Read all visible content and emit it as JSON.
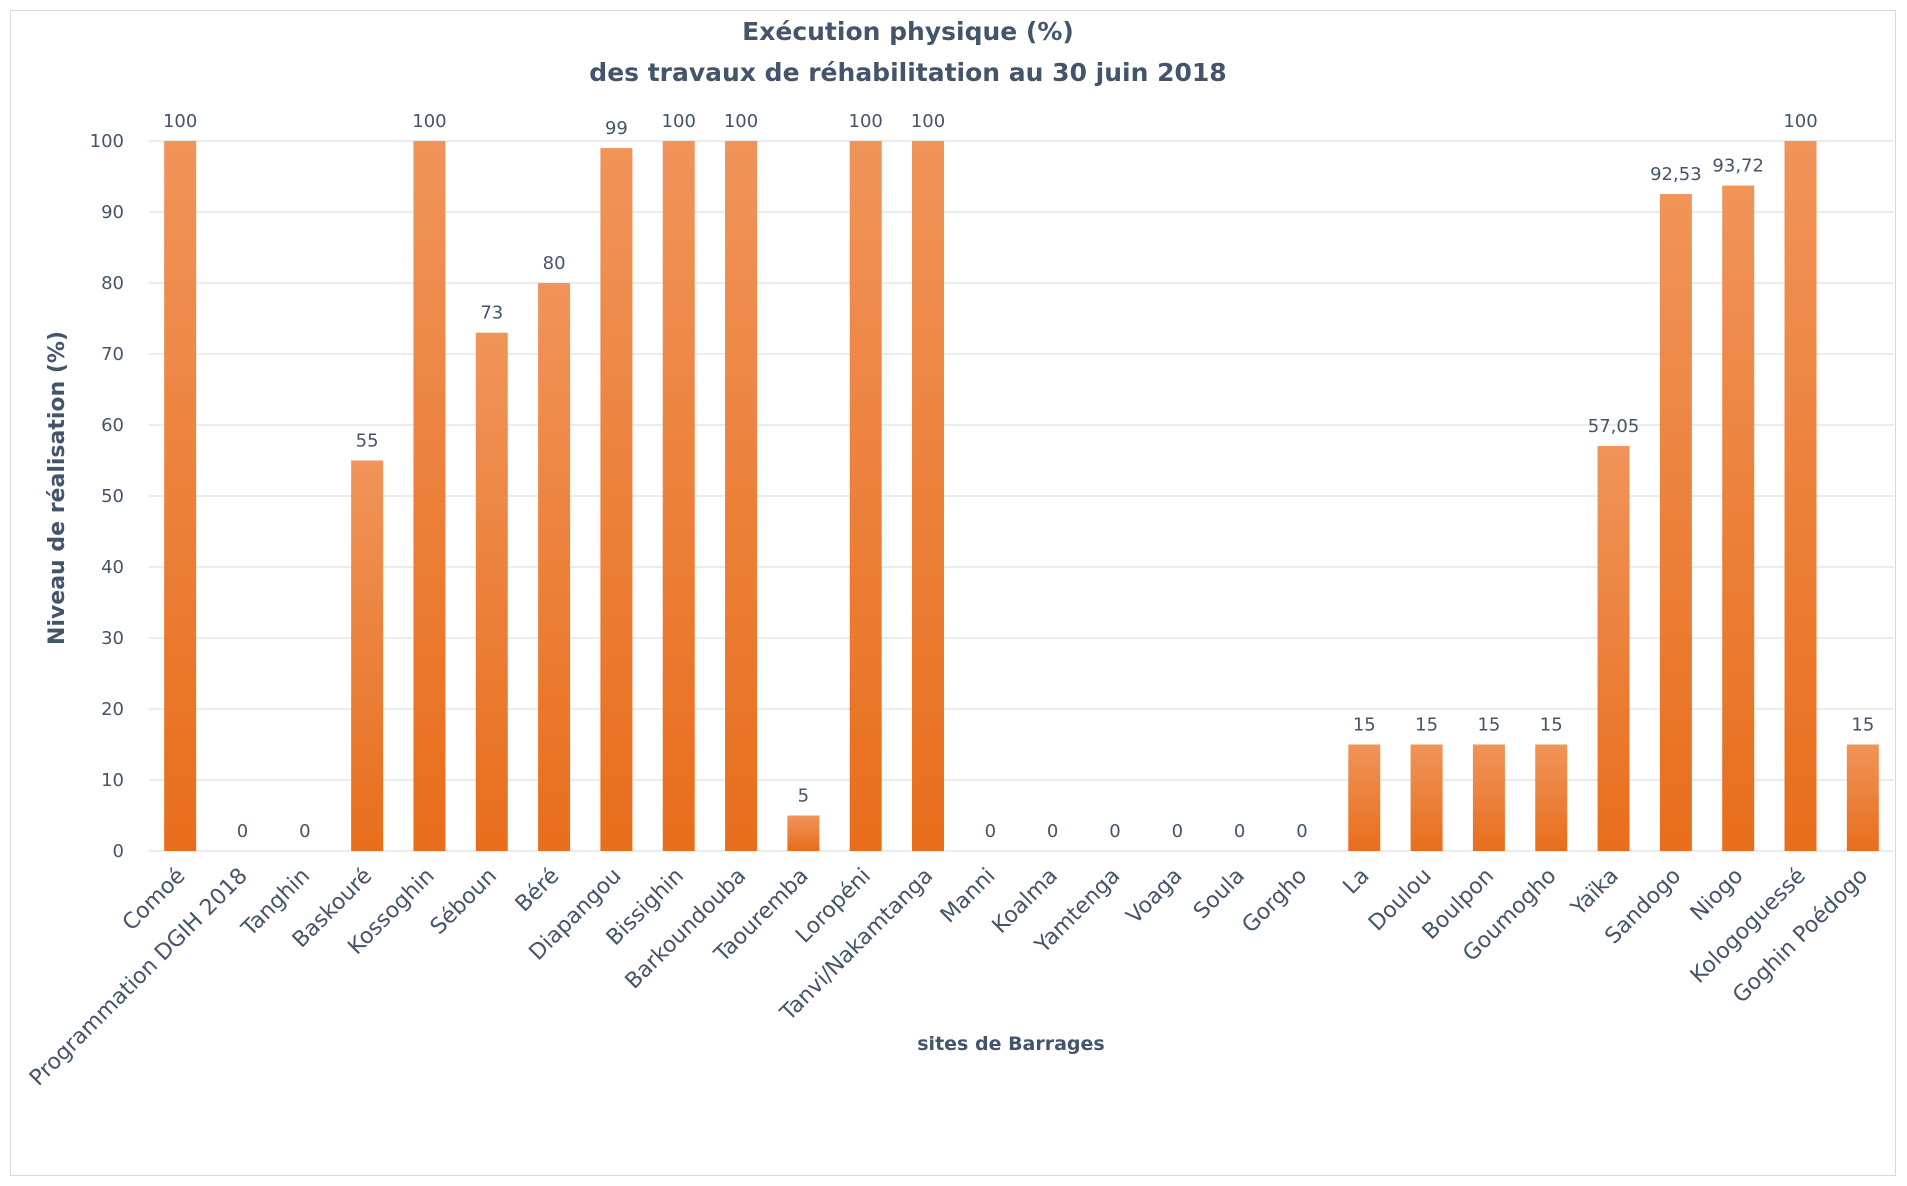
{
  "chart_data": {
    "type": "bar",
    "title_line1": "Exécution physique (%)",
    "title_line2": "des travaux de réhabilitation au 30 juin 2018",
    "xlabel": "sites de Barrages",
    "ylabel": "Niveau de réalisation (%)",
    "ylim": [
      0,
      100
    ],
    "yticks": [
      0,
      10,
      20,
      30,
      40,
      50,
      60,
      70,
      80,
      90,
      100
    ],
    "grid": true,
    "bar_color_top": "#f0945a",
    "bar_color_bottom": "#e86e1c",
    "categories": [
      "Comoé",
      "Programmation DGIH 2018",
      "Tanghin",
      "Baskouré",
      "Kossoghin",
      "Séboun",
      "Béré",
      "Diapangou",
      "Bissighin",
      "Barkoundouba",
      "Taouremba",
      "Loropéni",
      "Tanvi/Nakamtanga",
      "Manni",
      "Koalma",
      "Yamtenga",
      "Voaga",
      "Soula",
      "Gorgho",
      "La",
      "Doulou",
      "Boulpon",
      "Goumogho",
      "Yaïka",
      "Sandogo",
      "Niogo",
      "Kologoguessé",
      "Goghin Poédogo"
    ],
    "values": [
      100,
      0,
      0,
      55,
      100,
      73,
      80,
      99,
      100,
      100,
      5,
      100,
      100,
      0,
      0,
      0,
      0,
      0,
      0,
      15,
      15,
      15,
      15,
      57.05,
      92.53,
      93.72,
      100,
      15
    ],
    "value_labels": [
      "100",
      "0",
      "0",
      "55",
      "100",
      "73",
      "80",
      "99",
      "100",
      "100",
      "5",
      "100",
      "100",
      "0",
      "0",
      "0",
      "0",
      "0",
      "0",
      "15",
      "15",
      "15",
      "15",
      "57,05",
      "92,53",
      "93,72",
      "100",
      "15"
    ]
  }
}
